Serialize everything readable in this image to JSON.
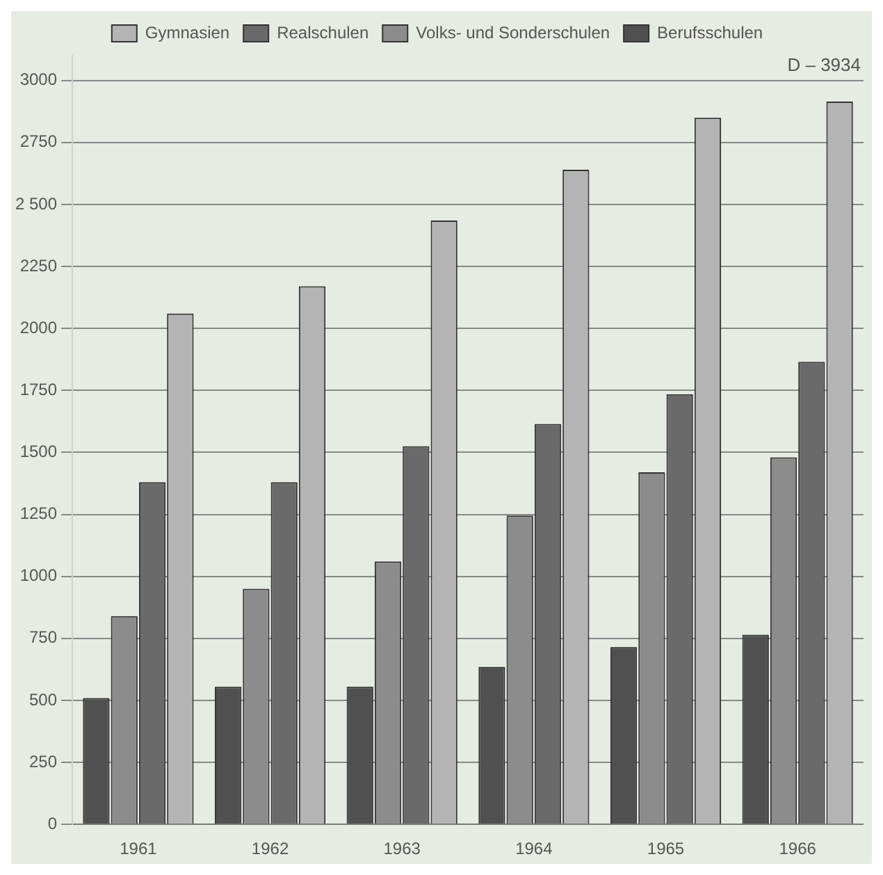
{
  "chart_data": {
    "type": "bar",
    "categories": [
      "1961",
      "1962",
      "1963",
      "1964",
      "1965",
      "1966"
    ],
    "series": [
      {
        "name": "Berufsschulen",
        "color": "#505050",
        "values": [
          510,
          555,
          555,
          635,
          715,
          765
        ]
      },
      {
        "name": "Volks- und Sonderschulen",
        "color": "#8c8c8c",
        "values": [
          840,
          950,
          1060,
          1245,
          1420,
          1480
        ]
      },
      {
        "name": "Realschulen",
        "color": "#6a6a6a",
        "values": [
          1380,
          1380,
          1525,
          1615,
          1735,
          1865
        ]
      },
      {
        "name": "Gymnasien",
        "color": "#b4b4b4",
        "values": [
          2060,
          2170,
          2435,
          2640,
          2850,
          2915
        ]
      }
    ],
    "ylim": [
      0,
      3100
    ],
    "yticks": [
      0,
      250,
      500,
      750,
      1000,
      1250,
      1500,
      1750,
      2000,
      2250,
      {
        "value": 2500,
        "label": "2 500"
      },
      2750,
      3000
    ],
    "grid": "y",
    "legend": "top",
    "annotations": [
      "D – 3934"
    ]
  }
}
